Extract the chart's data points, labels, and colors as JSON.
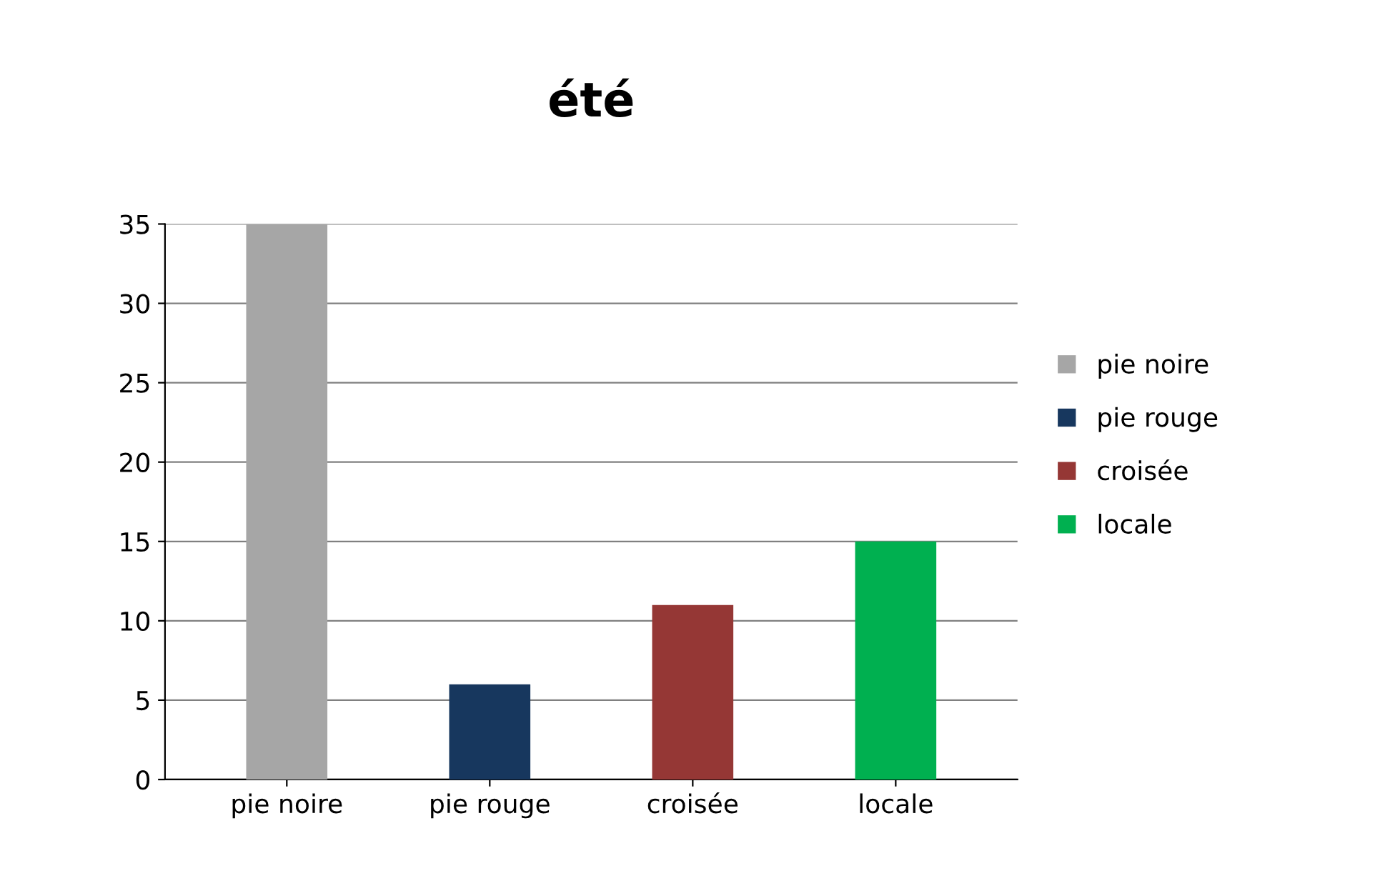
{
  "chart_data": {
    "type": "bar",
    "title": "été",
    "categories": [
      "pie noire",
      "pie rouge",
      "croisée",
      "locale"
    ],
    "series": [
      {
        "name": "pie noire",
        "color": "#a6a6a6",
        "values": [
          35,
          null,
          null,
          null
        ]
      },
      {
        "name": "pie rouge",
        "color": "#17375e",
        "values": [
          null,
          6,
          null,
          null
        ]
      },
      {
        "name": "croisée",
        "color": "#953735",
        "values": [
          null,
          null,
          11,
          null
        ]
      },
      {
        "name": "locale",
        "color": "#00b050",
        "values": [
          null,
          null,
          null,
          15
        ]
      }
    ],
    "ylim": [
      0,
      35
    ],
    "yticks": [
      0,
      5,
      10,
      15,
      20,
      25,
      30,
      35
    ],
    "grid": "y",
    "legend": "right"
  }
}
